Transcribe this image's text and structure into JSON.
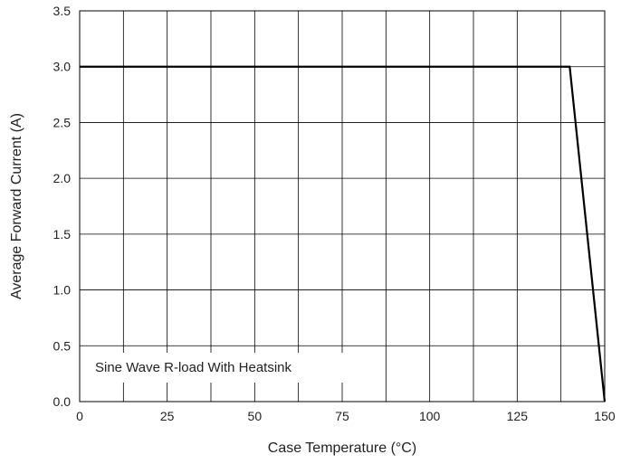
{
  "chart_data": {
    "type": "line",
    "xlabel": "Case Temperature (°C)",
    "ylabel": "Average Forward Current (A)",
    "xlim": [
      0,
      150
    ],
    "ylim": [
      0,
      3.5
    ],
    "x_ticks": [
      "0",
      "25",
      "50",
      "75",
      "100",
      "125",
      "150"
    ],
    "y_ticks": [
      "0.0",
      "0.5",
      "1.0",
      "1.5",
      "2.0",
      "2.5",
      "3.0",
      "3.5"
    ],
    "x_grid_step": 12.5,
    "y_grid_step": 0.5,
    "grid": true,
    "series": [
      {
        "x": [
          0,
          140,
          150
        ],
        "y": [
          3.0,
          3.0,
          0.0
        ],
        "color": "#000000"
      }
    ],
    "annotation": "Sine Wave R-load With Heatsink"
  }
}
